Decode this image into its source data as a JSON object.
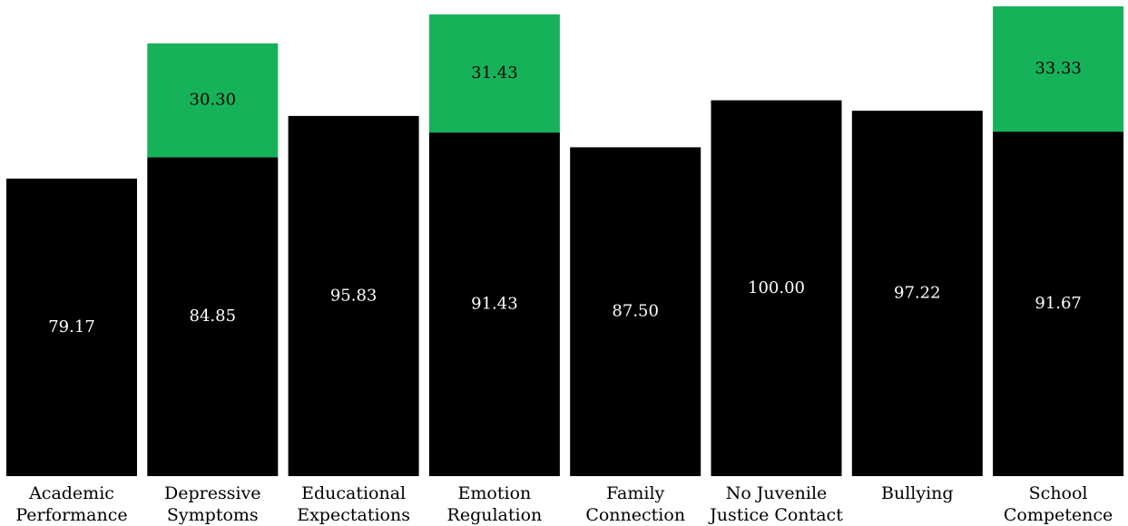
{
  "chart_data": {
    "type": "stacked-bar",
    "categories": [
      [
        "Academic",
        "Performance"
      ],
      [
        "Depressive",
        "Symptoms"
      ],
      [
        "Educational",
        "Expectations"
      ],
      [
        "Emotion",
        "Regulation"
      ],
      [
        "Family",
        "Connection"
      ],
      [
        "No Juvenile",
        "Justice Contact"
      ],
      [
        "Bullying"
      ],
      [
        "School",
        "Competence"
      ]
    ],
    "series": [
      {
        "color": "#000000",
        "label_color": "#ffffff",
        "values": [
          79.17,
          84.85,
          95.83,
          91.43,
          87.5,
          100,
          97.22,
          91.67
        ],
        "value_labels": [
          "79.17",
          "84.85",
          "95.83",
          "91.43",
          "87.50",
          "100.00",
          "97.22",
          "91.67"
        ]
      },
      {
        "color": "#16b25a",
        "label_color": "#000000",
        "values": [
          null,
          30.3,
          null,
          31.43,
          null,
          null,
          null,
          33.33
        ],
        "value_labels": [
          null,
          "30.30",
          null,
          "31.43",
          null,
          null,
          null,
          "33.33"
        ]
      }
    ]
  }
}
